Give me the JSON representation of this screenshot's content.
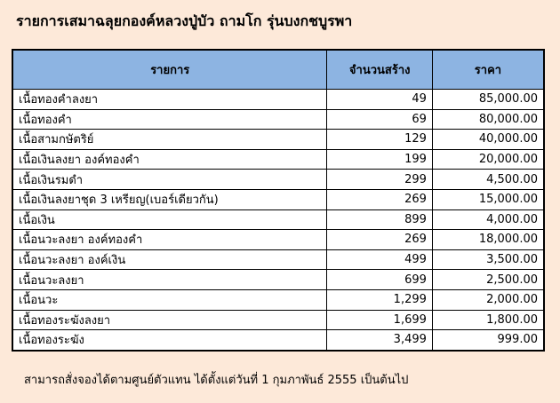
{
  "title": "รายการเสมาฉลุยกองค์หลวงปู่บัว ถามโก รุ่นบงกชบูรพา",
  "table": {
    "headers": [
      "รายการ",
      "จำนวนสร้าง",
      "ราคา"
    ],
    "rows": [
      [
        "เนื้อทองคำลงยา",
        "49",
        "85,000.00"
      ],
      [
        "เนื้อทองคำ",
        "69",
        "80,000.00"
      ],
      [
        "เนื้อสามกษัตริย์",
        "129",
        "40,000.00"
      ],
      [
        "เนื้อเงินลงยา   องค์ทองคำ",
        "199",
        "20,000.00"
      ],
      [
        "เนื้อเงินรมดำ",
        "299",
        "4,500.00"
      ],
      [
        "เนื้อเงินลงยาชุด   3 เหรียญ(เบอร์เดียวกัน)",
        "269",
        "15,000.00"
      ],
      [
        "เนื้อเงิน",
        "899",
        "4,000.00"
      ],
      [
        "เนื้อนวะลงยา   องค์ทองคำ",
        "269",
        "18,000.00"
      ],
      [
        "เนื้อนวะลงยา   องค์เงิน",
        "499",
        "3,500.00"
      ],
      [
        "เนื้อนวะลงยา",
        "699",
        "2,500.00"
      ],
      [
        "เนื้อนวะ",
        "1,299",
        "2,000.00"
      ],
      [
        "เนื้อทองระฆังลงยา",
        "1,699",
        "1,800.00"
      ],
      [
        "เนื้อทองระฆัง",
        "3,499",
        "999.00"
      ]
    ]
  },
  "footer": "สามารถสั่งจองได้ตามศูนย์ตัวแทน   ได้ตั้งแต่วันที่   1 กุมภาพันธ์   2555 เป็นต้นไป",
  "colors": {
    "background": "#fde9d9",
    "header": "#8db4e2"
  }
}
